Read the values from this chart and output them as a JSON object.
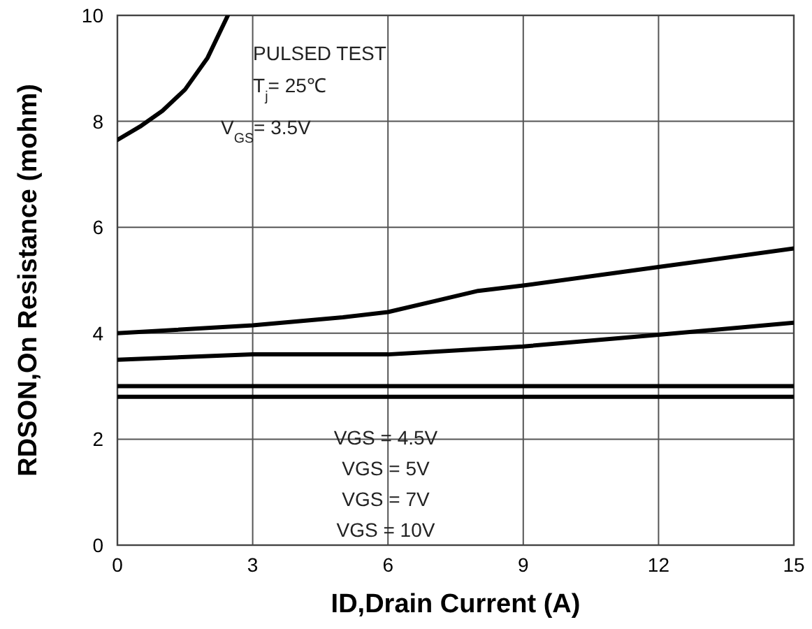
{
  "chart_data": {
    "type": "line",
    "xlabel": "ID,Drain Current (A)",
    "ylabel": "RDSON,On Resistance (mohm)",
    "xlim": [
      0,
      15
    ],
    "ylim": [
      0,
      10
    ],
    "xticks": [
      0,
      3,
      6,
      9,
      12,
      15
    ],
    "yticks": [
      0,
      2,
      4,
      6,
      8,
      10
    ],
    "grid": true,
    "marker": "none",
    "line_style": "solid",
    "series": [
      {
        "color": "#000000",
        "x": [
          0,
          0.5,
          1,
          1.5,
          2,
          2.45
        ],
        "values": [
          7.65,
          7.9,
          8.2,
          8.6,
          9.2,
          10
        ]
      },
      {
        "color": "#000000",
        "x": [
          0,
          3,
          5,
          6,
          7,
          8,
          9,
          12,
          15
        ],
        "values": [
          4.0,
          4.15,
          4.3,
          4.4,
          4.6,
          4.8,
          4.9,
          5.25,
          5.6
        ]
      },
      {
        "color": "#000000",
        "x": [
          0,
          3,
          6,
          9,
          12,
          15
        ],
        "values": [
          3.5,
          3.6,
          3.6,
          3.75,
          3.97,
          4.2
        ]
      },
      {
        "color": "#000000",
        "x": [
          0,
          15
        ],
        "values": [
          3.0,
          3.0
        ]
      },
      {
        "color": "#000000",
        "x": [
          0,
          15
        ],
        "values": [
          2.8,
          2.8
        ]
      }
    ],
    "annotations": [
      "PULSED TEST",
      "T$_{j}$= 25℃",
      "V$_{GS}$= 3.5V",
      "VGS = 4.5V",
      "VGS = 5V",
      "VGS = 7V",
      "VGS = 10V"
    ]
  }
}
